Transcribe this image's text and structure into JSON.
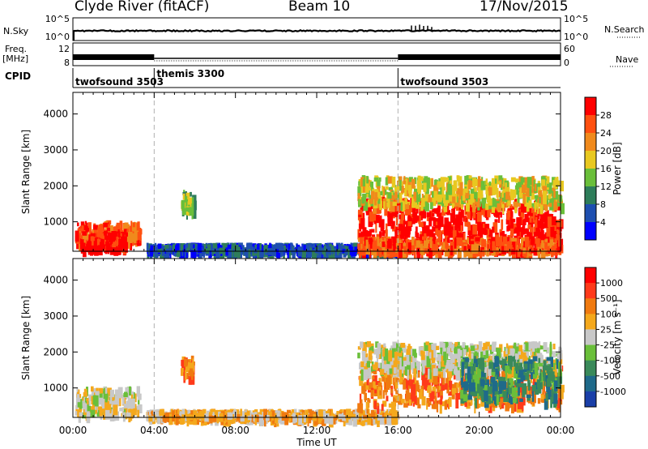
{
  "header": {
    "site": "Clyde River (fitACF)",
    "beam": "Beam 10",
    "date": "17/Nov/2015"
  },
  "side_labels": {
    "nsky": "N.Sky",
    "freq_1": "Freq.",
    "freq_2": "[MHz]",
    "cpid": "CPID",
    "nsearch": "N.Search",
    "nave": "Nave"
  },
  "noise_panel": {
    "ticks_left": [
      "10^5",
      "10^0"
    ],
    "ticks_right": [
      "10^5",
      "10^0"
    ]
  },
  "freq_panel": {
    "ticks_left": [
      "12",
      "8"
    ],
    "ticks_right": [
      "60",
      "0"
    ]
  },
  "cpid_panel": {
    "segments": [
      {
        "label": "twofsound 3503",
        "start": 0,
        "end": 4
      },
      {
        "label": "themis 3300",
        "start": 4,
        "end": 16
      },
      {
        "label": "twofsound 3503",
        "start": 16,
        "end": 24
      }
    ]
  },
  "time_axis": {
    "label": "Time UT",
    "ticks": [
      "00:00",
      "04:00",
      "08:00",
      "12:00",
      "16:00",
      "20:00",
      "00:00"
    ]
  },
  "power_panel": {
    "ylabel": "Slant Range [km]",
    "yticks": [
      "1000",
      "2000",
      "3000",
      "4000"
    ],
    "colorbar_label": "Power [dB]",
    "colorbar_ticks": [
      "4",
      "8",
      "12",
      "16",
      "20",
      "24",
      "28"
    ],
    "colors": [
      "#0000ff",
      "#1e4fb0",
      "#2e7d5a",
      "#6abf3a",
      "#e8c820",
      "#f08a1c",
      "#ff5010",
      "#ff0000"
    ]
  },
  "velocity_panel": {
    "ylabel": "Slant Range [km]",
    "yticks": [
      "1000",
      "2000",
      "3000",
      "4000"
    ],
    "colorbar_label": "Velocity [m s⁻¹]",
    "colorbar_ticks": [
      "1000",
      "500",
      "100",
      "25",
      "-25",
      "-100",
      "-500",
      "-1000"
    ],
    "colors": [
      "#1a3fa8",
      "#1f6a8a",
      "#3a8a5a",
      "#6abf3a",
      "#c8c8c8",
      "#f4a81c",
      "#f07a10",
      "#ff3a1a",
      "#ff0000"
    ]
  },
  "chart_data": [
    {
      "type": "line",
      "name": "noise",
      "x_range": [
        0,
        24
      ],
      "series": [
        {
          "name": "N.Sky",
          "level": 0.5
        },
        {
          "name": "N.Search",
          "level": 0.45
        }
      ]
    },
    {
      "type": "scatter",
      "name": "frequency",
      "x_range": [
        0,
        24
      ],
      "y_range": [
        8,
        12
      ],
      "series": [
        {
          "name": "Freq",
          "segments": [
            [
              0,
              4,
              10.5
            ],
            [
              4,
              16,
              10.0
            ],
            [
              16,
              24,
              10.5
            ]
          ]
        }
      ]
    },
    {
      "type": "heatmap",
      "title": "",
      "xlabel": "Time UT",
      "ylabel": "Slant Range [km]",
      "x_range": [
        0,
        24
      ],
      "y_range": [
        180,
        4600
      ],
      "colorbar": "Power [dB]",
      "regions": [
        {
          "t": [
            0.1,
            3.2
          ],
          "r": [
            400,
            1050
          ],
          "level": 6
        },
        {
          "t": [
            0.3,
            2.6
          ],
          "r": [
            300,
            750
          ],
          "level": 7
        },
        {
          "t": [
            3.6,
            16
          ],
          "r": [
            200,
            420
          ],
          "level": 1
        },
        {
          "t": [
            5.3,
            5.9
          ],
          "r": [
            1300,
            1900
          ],
          "level": 3
        },
        {
          "t": [
            14,
            24
          ],
          "r": [
            550,
            1700
          ],
          "level": 7
        },
        {
          "t": [
            14,
            24
          ],
          "r": [
            1500,
            2300
          ],
          "level": 4
        },
        {
          "t": [
            14,
            24
          ],
          "r": [
            200,
            600
          ],
          "level": 6
        }
      ]
    },
    {
      "type": "heatmap",
      "title": "",
      "xlabel": "Time UT",
      "ylabel": "Slant Range [km]",
      "x_range": [
        0,
        24
      ],
      "y_range": [
        180,
        4600
      ],
      "colorbar": "Velocity [m s⁻¹]",
      "regions": [
        {
          "t": [
            0.1,
            3.2
          ],
          "r": [
            300,
            1050
          ],
          "level": 4
        },
        {
          "t": [
            3.6,
            16
          ],
          "r": [
            200,
            420
          ],
          "level": 5
        },
        {
          "t": [
            5.3,
            5.9
          ],
          "r": [
            1300,
            1900
          ],
          "level": 6
        },
        {
          "t": [
            14,
            24
          ],
          "r": [
            550,
            1700
          ],
          "level": 6
        },
        {
          "t": [
            14,
            24
          ],
          "r": [
            1500,
            2300
          ],
          "level": 4
        },
        {
          "t": [
            19,
            24
          ],
          "r": [
            700,
            1900
          ],
          "level": 2
        }
      ]
    }
  ]
}
